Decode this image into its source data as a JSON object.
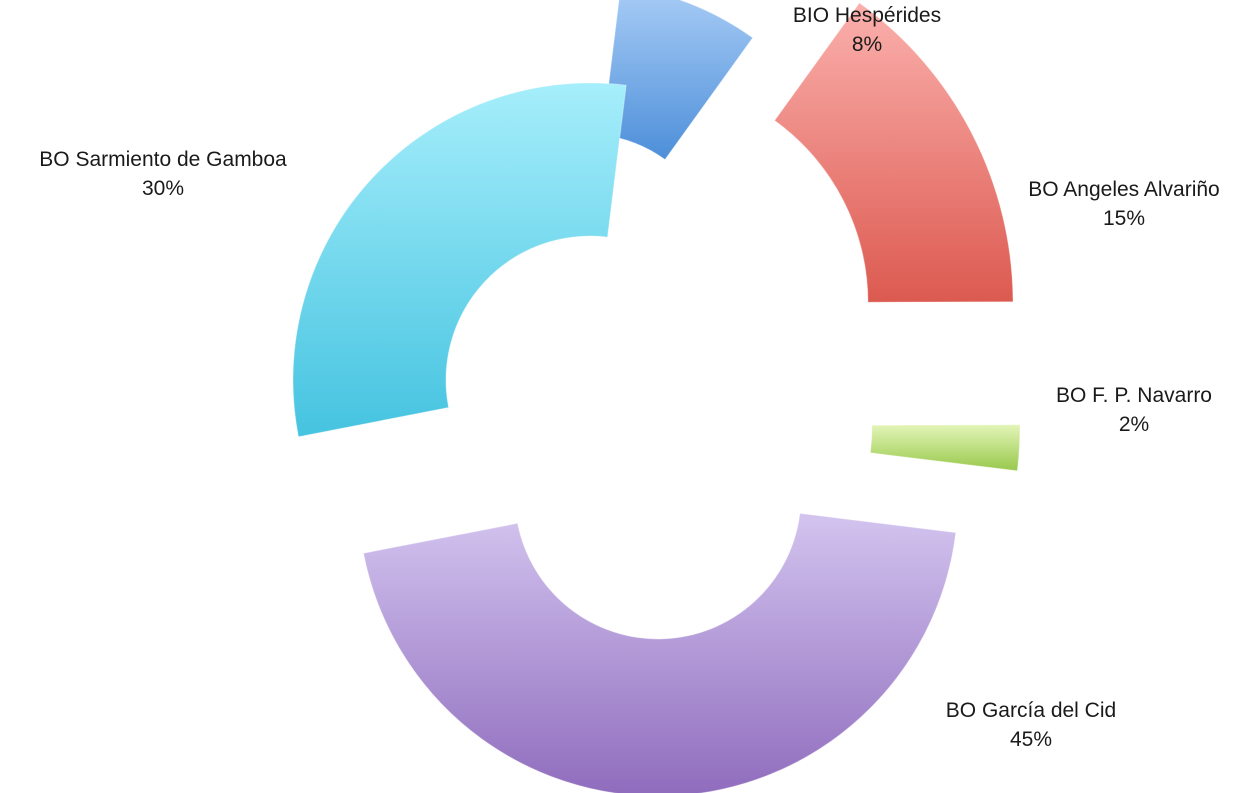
{
  "chart_data": {
    "type": "pie",
    "style": "exploded-doughnut",
    "title": "",
    "slices": [
      {
        "label": "BIO Hespérides",
        "value": 8,
        "value_label": "8%",
        "color_top": "#a9cdf6",
        "color_bottom": "#4d8fd9"
      },
      {
        "label": "BO Angeles Alvariño",
        "value": 15,
        "value_label": "15%",
        "color_top": "#fbb0ad",
        "color_bottom": "#dc5a50"
      },
      {
        "label": "BO F. P. Navarro",
        "value": 2,
        "value_label": "2%",
        "color_top": "#e3f5b7",
        "color_bottom": "#98c84c"
      },
      {
        "label": "BO García del Cid",
        "value": 45,
        "value_label": "45%",
        "color_top": "#d3c4ef",
        "color_bottom": "#8f6cbd"
      },
      {
        "label": "BO Sarmiento de Gamboa",
        "value": 30,
        "value_label": "30%",
        "color_top": "#a6eefb",
        "color_bottom": "#45c3e0"
      }
    ]
  }
}
